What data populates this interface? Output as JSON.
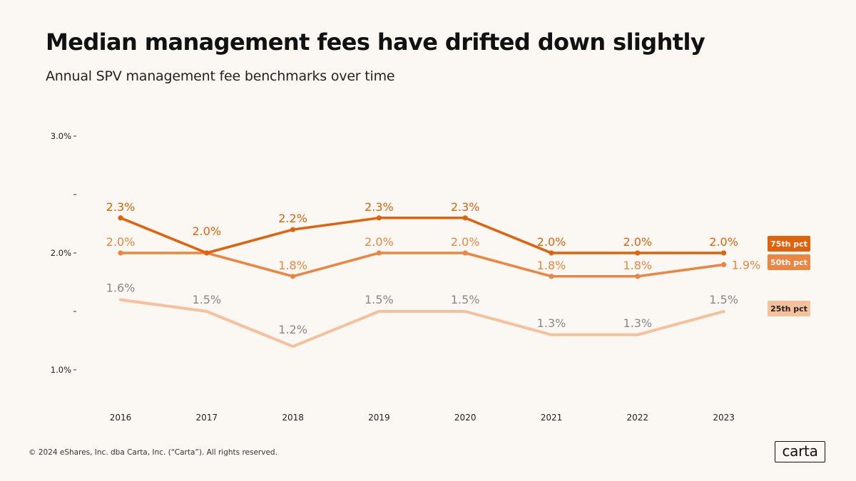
{
  "header": {
    "title": "Median management fees have drifted down slightly",
    "subtitle": "Annual SPV management fee benchmarks over time"
  },
  "footer": {
    "copyright": "© 2024 eShares, Inc. dba Carta, Inc. (“Carta”). All rights reserved.",
    "logo_text": "carta"
  },
  "colors": {
    "background": "#fbf7f3",
    "p75": "#e0620d",
    "p50": "#ea8542",
    "p25": "#f5c09c",
    "label_25th": "#888888"
  },
  "chart_data": {
    "type": "line",
    "title": "Median management fees have drifted down slightly",
    "subtitle": "Annual SPV management fee benchmarks over time",
    "xlabel": "",
    "ylabel": "",
    "x": [
      "2016",
      "2017",
      "2018",
      "2019",
      "2020",
      "2021",
      "2022",
      "2023"
    ],
    "ylim": [
      0.9,
      3.0
    ],
    "yticks": [
      {
        "value": 3.0,
        "label": "3.0%"
      },
      {
        "value": 2.5,
        "label": ""
      },
      {
        "value": 2.0,
        "label": "2.0%"
      },
      {
        "value": 1.5,
        "label": ""
      },
      {
        "value": 1.0,
        "label": "1.0%"
      }
    ],
    "grid": false,
    "legend_position": "right, at series end",
    "series": [
      {
        "name": "75th pct",
        "key": "p75",
        "values": [
          2.3,
          2.0,
          2.2,
          2.3,
          2.3,
          2.0,
          2.0,
          2.0
        ],
        "labels": [
          "2.3%",
          "2.0%",
          "2.2%",
          "2.3%",
          "2.3%",
          "2.0%",
          "2.0%",
          "2.0%"
        ]
      },
      {
        "name": "50th pct",
        "key": "p50",
        "values": [
          2.0,
          2.0,
          1.8,
          2.0,
          2.0,
          1.8,
          1.8,
          1.9
        ],
        "labels": [
          "2.0%",
          "",
          "1.8%",
          "2.0%",
          "2.0%",
          "1.8%",
          "1.8%",
          "1.9%"
        ]
      },
      {
        "name": "25th pct",
        "key": "p25",
        "values": [
          1.6,
          1.5,
          1.2,
          1.5,
          1.5,
          1.3,
          1.3,
          1.5
        ],
        "labels": [
          "1.6%",
          "1.5%",
          "1.2%",
          "1.5%",
          "1.5%",
          "1.3%",
          "1.3%",
          "1.5%"
        ]
      }
    ]
  }
}
